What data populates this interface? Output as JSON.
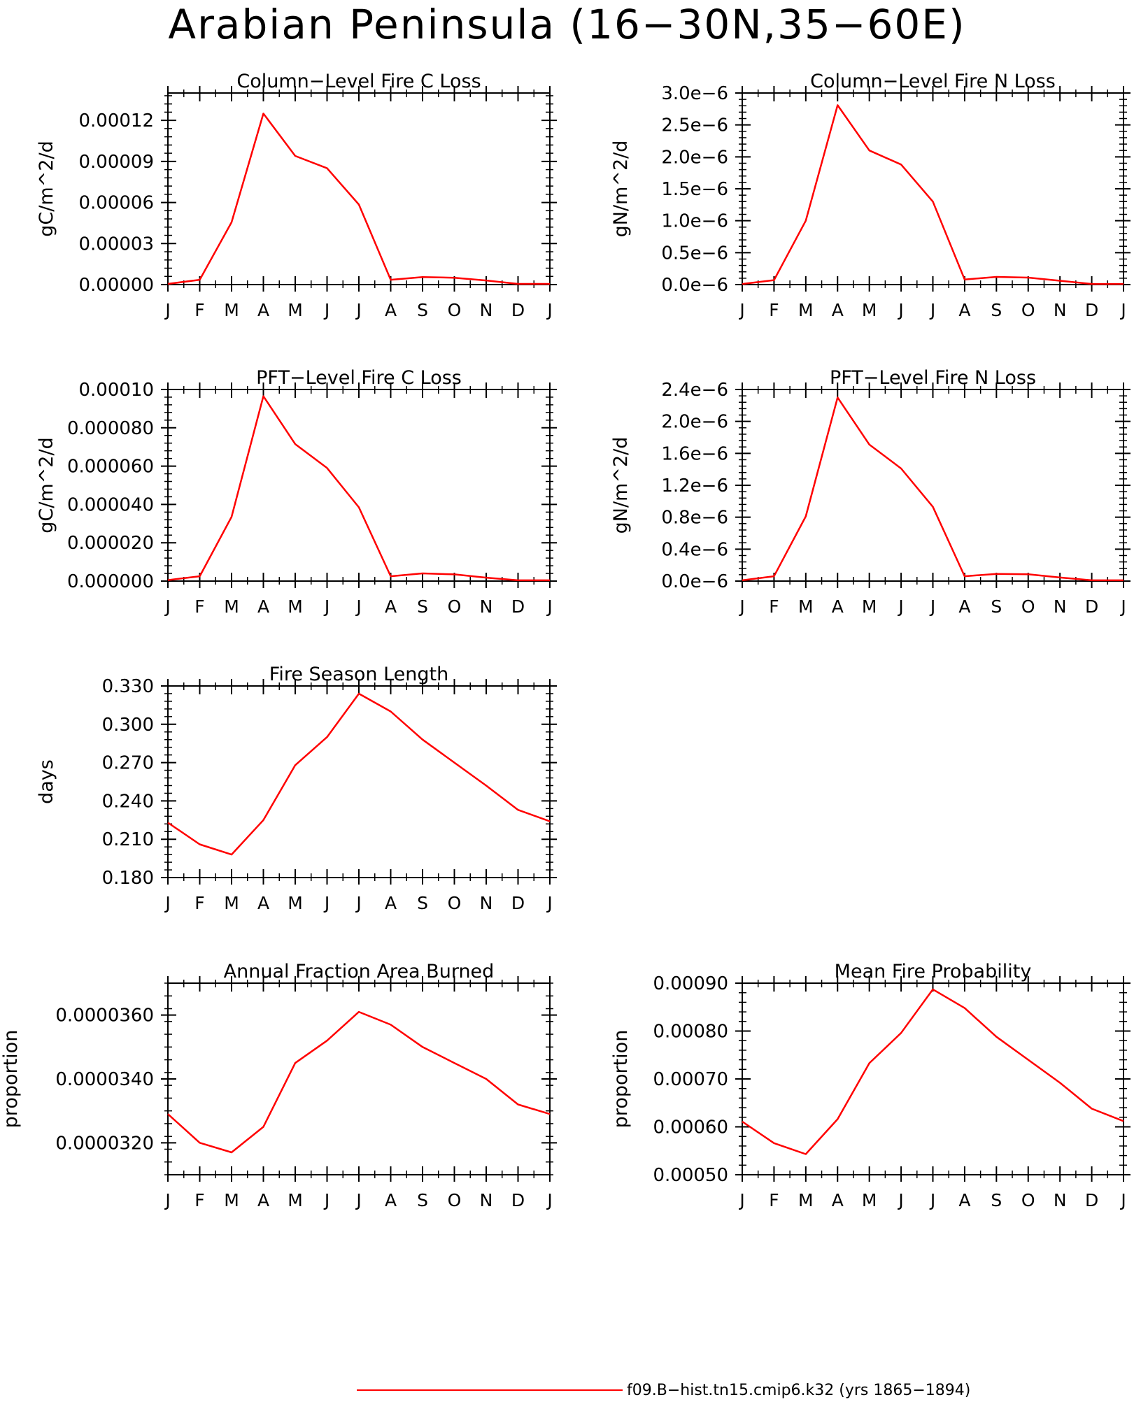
{
  "title": "Arabian Peninsula (16−30N,35−60E)",
  "legend": {
    "label": "f09.B−hist.tn15.cmip6.k32 (yrs 1865−1894)",
    "color": "#ff0000"
  },
  "chart_data": [
    {
      "type": "line",
      "title": "Column−Level Fire C Loss",
      "ylabel": "gC/m^2/d",
      "categories": [
        "J",
        "F",
        "M",
        "A",
        "M",
        "J",
        "J",
        "A",
        "S",
        "O",
        "N",
        "D",
        "J"
      ],
      "ylim": [
        0,
        0.00014
      ],
      "yticks": [
        0,
        3e-05,
        6e-05,
        9e-05,
        0.00012
      ],
      "ytick_labels": [
        "0.00000",
        "0.00003",
        "0.00006",
        "0.00009",
        "0.00012"
      ],
      "series": [
        {
          "values": [
            5e-07,
            3.5e-06,
            4.55e-05,
            0.000125,
            9.4e-05,
            8.5e-05,
            5.85e-05,
            3.5e-06,
            5.5e-06,
            5e-06,
            3e-06,
            5e-07,
            5e-07
          ],
          "color": "#ff0000"
        }
      ]
    },
    {
      "type": "line",
      "title": "Column−Level Fire N Loss",
      "ylabel": "gN/m^2/d",
      "categories": [
        "J",
        "F",
        "M",
        "A",
        "M",
        "J",
        "J",
        "A",
        "S",
        "O",
        "N",
        "D",
        "J"
      ],
      "ylim": [
        0,
        3e-06
      ],
      "yticks": [
        0,
        5e-07,
        1e-06,
        1.5e-06,
        2e-06,
        2.5e-06,
        3e-06
      ],
      "ytick_labels": [
        "0.0e−6",
        "0.5e−6",
        "1.0e−6",
        "1.5e−6",
        "2.0e−6",
        "2.5e−6",
        "3.0e−6"
      ],
      "series": [
        {
          "values": [
            1e-08,
            7e-08,
            1e-06,
            2.81e-06,
            2.1e-06,
            1.88e-06,
            1.3e-06,
            8e-08,
            1.2e-07,
            1.1e-07,
            6e-08,
            1e-08,
            1e-08
          ],
          "color": "#ff0000"
        }
      ]
    },
    {
      "type": "line",
      "title": "PFT−Level Fire C Loss",
      "ylabel": "gC/m^2/d",
      "categories": [
        "J",
        "F",
        "M",
        "A",
        "M",
        "J",
        "J",
        "A",
        "S",
        "O",
        "N",
        "D",
        "J"
      ],
      "ylim": [
        0,
        0.0001
      ],
      "yticks": [
        0,
        2e-05,
        4e-05,
        6e-05,
        8e-05,
        0.0001
      ],
      "ytick_labels": [
        "0.000000",
        "0.000020",
        "0.000040",
        "0.000060",
        "0.000080",
        "0.00010"
      ],
      "series": [
        {
          "values": [
            5e-07,
            2.5e-06,
            3.35e-05,
            9.65e-05,
            7.15e-05,
            5.9e-05,
            3.85e-05,
            2.5e-06,
            4e-06,
            3.5e-06,
            1.8e-06,
            4e-07,
            4e-07
          ],
          "color": "#ff0000"
        }
      ]
    },
    {
      "type": "line",
      "title": "PFT−Level Fire N Loss",
      "ylabel": "gN/m^2/d",
      "categories": [
        "J",
        "F",
        "M",
        "A",
        "M",
        "J",
        "J",
        "A",
        "S",
        "O",
        "N",
        "D",
        "J"
      ],
      "ylim": [
        0,
        2.4e-06
      ],
      "yticks": [
        0,
        4e-07,
        8e-07,
        1.2e-06,
        1.6e-06,
        2e-06,
        2.4e-06
      ],
      "ytick_labels": [
        "0.0e−6",
        "0.4e−6",
        "0.8e−6",
        "1.2e−6",
        "1.6e−6",
        "2.0e−6",
        "2.4e−6"
      ],
      "series": [
        {
          "values": [
            1e-08,
            6e-08,
            8.1e-07,
            2.3e-06,
            1.71e-06,
            1.41e-06,
            9.3e-07,
            6e-08,
            9e-08,
            8.5e-08,
            4.5e-08,
            1e-08,
            1e-08
          ],
          "color": "#ff0000"
        }
      ]
    },
    {
      "type": "line",
      "title": "Fire Season Length",
      "ylabel": "days",
      "categories": [
        "J",
        "F",
        "M",
        "A",
        "M",
        "J",
        "J",
        "A",
        "S",
        "O",
        "N",
        "D",
        "J"
      ],
      "ylim": [
        0.18,
        0.33
      ],
      "yticks": [
        0.18,
        0.21,
        0.24,
        0.27,
        0.3,
        0.33
      ],
      "ytick_labels": [
        "0.180",
        "0.210",
        "0.240",
        "0.270",
        "0.300",
        "0.330"
      ],
      "series": [
        {
          "values": [
            0.223,
            0.206,
            0.198,
            0.225,
            0.268,
            0.29,
            0.324,
            0.31,
            0.288,
            0.27,
            0.252,
            0.233,
            0.224
          ],
          "color": "#ff0000"
        }
      ]
    },
    {
      "type": "line",
      "title": "Annual Fraction Area Burned",
      "ylabel": "proportion",
      "categories": [
        "J",
        "F",
        "M",
        "A",
        "M",
        "J",
        "J",
        "A",
        "S",
        "O",
        "N",
        "D",
        "J"
      ],
      "ylim": [
        3.1e-05,
        3.7e-05
      ],
      "yticks": [
        3.2e-05,
        3.4e-05,
        3.6e-05
      ],
      "ytick_labels": [
        "0.0000320",
        "0.0000340",
        "0.0000360"
      ],
      "series": [
        {
          "values": [
            3.29e-05,
            3.2e-05,
            3.17e-05,
            3.25e-05,
            3.45e-05,
            3.52e-05,
            3.61e-05,
            3.57e-05,
            3.5e-05,
            3.45e-05,
            3.4e-05,
            3.32e-05,
            3.29e-05
          ],
          "color": "#ff0000"
        }
      ]
    },
    {
      "type": "line",
      "title": "Mean Fire Probability",
      "ylabel": "proportion",
      "categories": [
        "J",
        "F",
        "M",
        "A",
        "M",
        "J",
        "J",
        "A",
        "S",
        "O",
        "N",
        "D",
        "J"
      ],
      "ylim": [
        0.0005,
        0.0009
      ],
      "yticks": [
        0.0005,
        0.0006,
        0.0007,
        0.0008,
        0.0009
      ],
      "ytick_labels": [
        "0.00050",
        "0.00060",
        "0.00070",
        "0.00080",
        "0.00090"
      ],
      "series": [
        {
          "values": [
            0.000611,
            0.000566,
            0.000543,
            0.000616,
            0.000733,
            0.000796,
            0.000887,
            0.000848,
            0.000788,
            0.00074,
            0.000692,
            0.000638,
            0.000612
          ],
          "color": "#ff0000"
        }
      ]
    }
  ]
}
